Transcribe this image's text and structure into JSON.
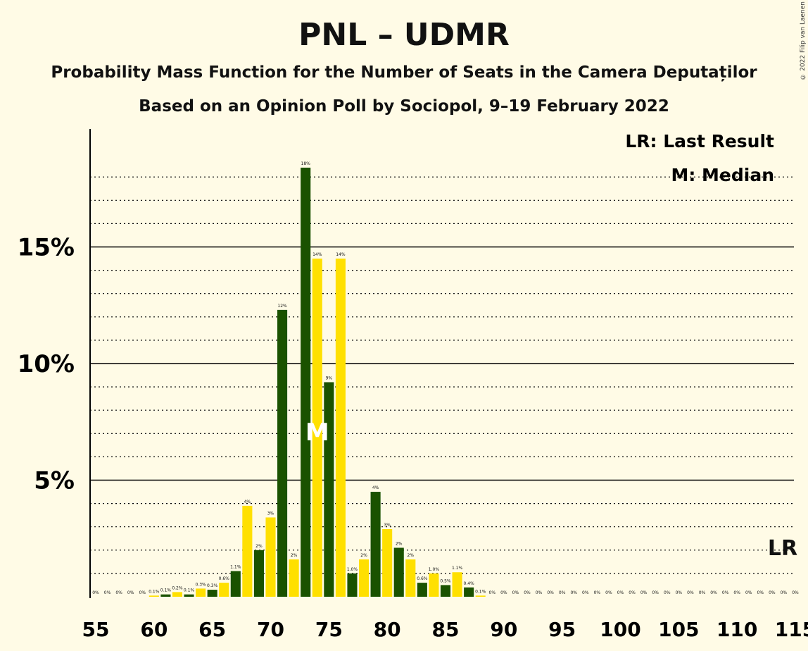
{
  "title": "PNL – UDMR",
  "subtitle": "Probability Mass Function for the Number of Seats in the Camera Deputaților",
  "source": "Based on an Opinion Poll by Sociopol, 9–19 February 2022",
  "copyright": "© 2022 Filip van Laenen",
  "legend": {
    "lr": "LR: Last Result",
    "median": "M: Median"
  },
  "markers": {
    "median_label": "M",
    "median_seat": 74,
    "lr_label": "LR",
    "lr_seat": 115
  },
  "colors": {
    "dark": "#1a5200",
    "yellow": "#ffe000",
    "background": "#fffbe6"
  },
  "chart_data": {
    "type": "bar",
    "xlabel": "",
    "ylabel": "",
    "ylim": [
      0,
      20
    ],
    "y_ticks": [
      {
        "value": 5,
        "label": "5%"
      },
      {
        "value": 10,
        "label": "10%"
      },
      {
        "value": 15,
        "label": "15%"
      }
    ],
    "x_ticks": [
      "55",
      "60",
      "65",
      "70",
      "75",
      "80",
      "85",
      "90",
      "95",
      "100",
      "105",
      "110",
      "115"
    ],
    "seats": [
      55,
      56,
      57,
      58,
      59,
      60,
      61,
      62,
      63,
      64,
      65,
      66,
      67,
      68,
      69,
      70,
      71,
      72,
      73,
      74,
      75,
      76,
      77,
      78,
      79,
      80,
      81,
      82,
      83,
      84,
      85,
      86,
      87,
      88,
      89,
      90,
      91,
      92,
      93,
      94,
      95,
      96,
      97,
      98,
      99,
      100,
      101,
      102,
      103,
      104,
      105,
      106,
      107,
      108,
      109,
      110,
      111,
      112,
      113,
      114,
      115
    ],
    "values": [
      0,
      0,
      0,
      0,
      0,
      0.05,
      0.1,
      0.2,
      0.1,
      0.35,
      0.3,
      0.6,
      1.1,
      3.9,
      2.0,
      3.4,
      12.3,
      1.6,
      18.4,
      14.5,
      9.2,
      14.5,
      1.0,
      1.6,
      4.5,
      2.9,
      2.1,
      1.6,
      0.6,
      1.0,
      0.5,
      1.05,
      0.4,
      0.05,
      0,
      0,
      0,
      0,
      0,
      0,
      0,
      0,
      0,
      0,
      0,
      0,
      0,
      0,
      0,
      0,
      0,
      0,
      0,
      0,
      0,
      0,
      0,
      0,
      0,
      0,
      0
    ],
    "labels": [
      "0%",
      "0%",
      "0%",
      "0%",
      "0%",
      "0.1%",
      "0.1%",
      "0.2%",
      "0.1%",
      "0.3%",
      "0.3%",
      "0.6%",
      "1.1%",
      "4%",
      "2%",
      "3%",
      "12%",
      "2%",
      "18%",
      "14%",
      "9%",
      "14%",
      "1.0%",
      "2%",
      "4%",
      "3%",
      "2%",
      "2%",
      "0.6%",
      "1.0%",
      "0.5%",
      "1.1%",
      "0.4%",
      "0.1%",
      "0%",
      "0%",
      "0%",
      "0%",
      "0%",
      "0%",
      "0%",
      "0%",
      "0%",
      "0%",
      "0%",
      "0%",
      "0%",
      "0%",
      "0%",
      "0%",
      "0%",
      "0%",
      "0%",
      "0%",
      "0%",
      "0%",
      "0%",
      "0%",
      "0%",
      "0%",
      "0%"
    ],
    "grid": "dotted minor lines every 1%, solid lines every 5%"
  }
}
